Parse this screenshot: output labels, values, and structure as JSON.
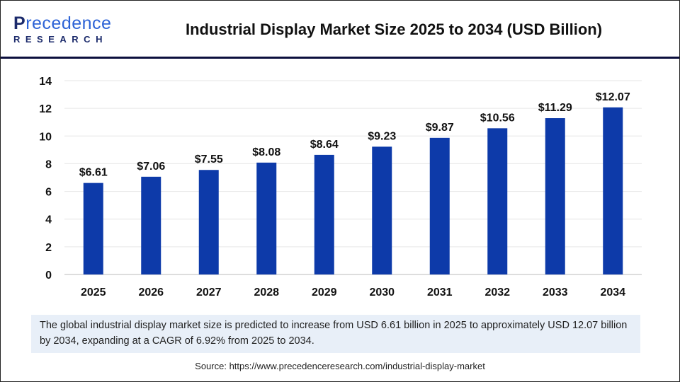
{
  "logo": {
    "line1": "Precedence",
    "line2": "RESEARCH"
  },
  "title": "Industrial Display Market Size 2025 to 2034 (USD Billion)",
  "chart_data": {
    "type": "bar",
    "title": "Industrial Display Market Size 2025 to 2034 (USD Billion)",
    "categories": [
      "2025",
      "2026",
      "2027",
      "2028",
      "2029",
      "2030",
      "2031",
      "2032",
      "2033",
      "2034"
    ],
    "values": [
      6.61,
      7.06,
      7.55,
      8.08,
      8.64,
      9.23,
      9.87,
      10.56,
      11.29,
      12.07
    ],
    "data_labels": [
      "$6.61",
      "$7.06",
      "$7.55",
      "$8.08",
      "$8.64",
      "$9.23",
      "$9.87",
      "$10.56",
      "$11.29",
      "$12.07"
    ],
    "yticks": [
      0,
      2,
      4,
      6,
      8,
      10,
      12,
      14
    ],
    "ylim": [
      0,
      14
    ],
    "grid": true,
    "bar_color": "#0d3aa9",
    "xlabel": "",
    "ylabel": ""
  },
  "note": "The global industrial display market size is predicted to increase from USD 6.61 billion in 2025 to approximately USD 12.07 billion by 2034, expanding at a CAGR of 6.92% from 2025 to 2034.",
  "source": "Source: https://www.precedenceresearch.com/industrial-display-market"
}
